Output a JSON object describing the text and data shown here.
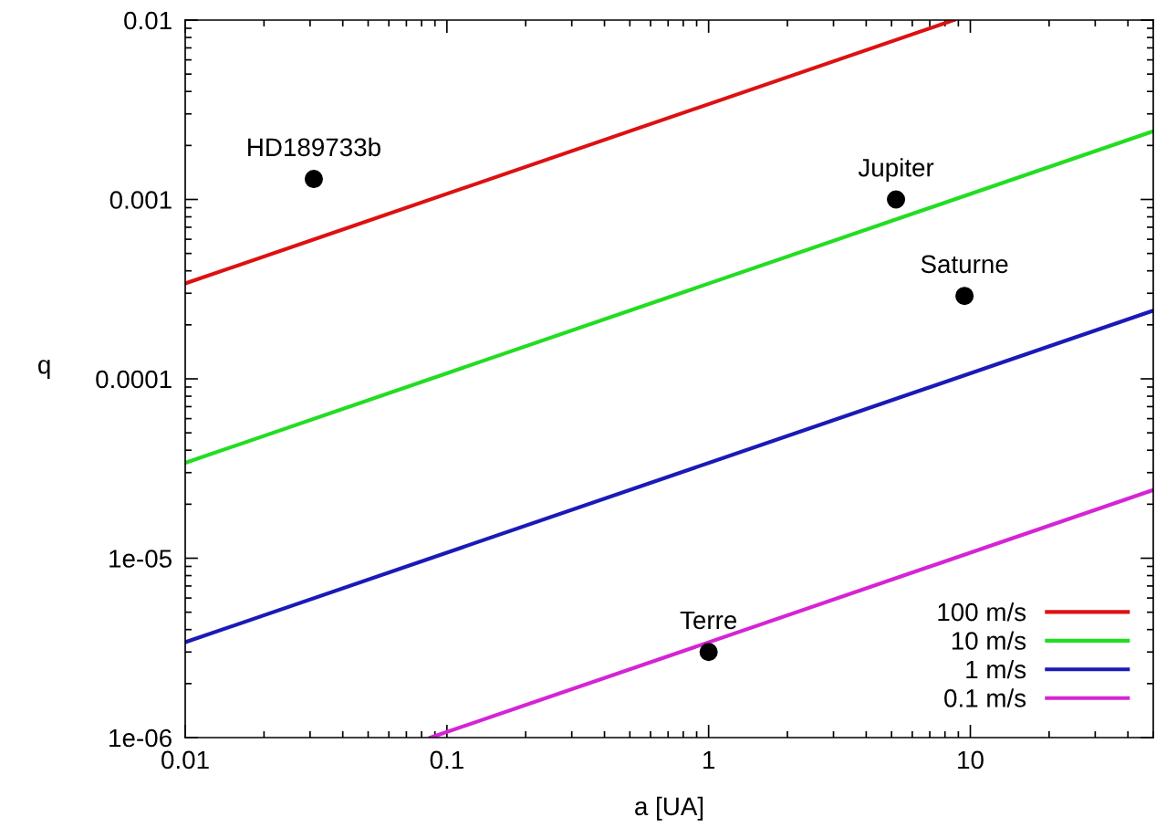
{
  "chart_data": {
    "type": "line",
    "xlabel": "a [UA]",
    "ylabel": "q",
    "log": "xy",
    "xlim": [
      0.01,
      50
    ],
    "ylim": [
      1e-06,
      0.01
    ],
    "xticks": [
      0.01,
      0.1,
      1,
      10
    ],
    "yticks": [
      {
        "value": 1e-06,
        "label": "1e-06"
      },
      {
        "value": 1e-05,
        "label": "1e-05"
      },
      {
        "value": 0.0001,
        "label": "0.0001"
      },
      {
        "value": 0.001,
        "label": "0.001"
      },
      {
        "value": 0.01,
        "label": "0.01"
      }
    ],
    "series": [
      {
        "name": "100 m/s",
        "color": "#dd1111",
        "x": [
          0.01,
          8.65
        ],
        "values": [
          0.00034,
          0.01
        ]
      },
      {
        "name": "10 m/s",
        "color": "#22dd22",
        "x": [
          0.01,
          50
        ],
        "values": [
          3.4e-05,
          0.0024
        ]
      },
      {
        "name": "1 m/s",
        "color": "#1a1ab8",
        "x": [
          0.01,
          50
        ],
        "values": [
          3.4e-06,
          0.00024
        ]
      },
      {
        "name": "0.1 m/s",
        "color": "#d524d5",
        "x": [
          0.0865,
          50
        ],
        "values": [
          1e-06,
          2.4e-05
        ]
      },
      {
        "type": "scatter",
        "color": "#000000",
        "marker": "circle",
        "x": [
          0.031,
          5.2,
          9.5,
          1
        ],
        "values": [
          0.0013,
          0.001,
          0.00029,
          3e-06
        ]
      }
    ],
    "annotations": [
      {
        "text": "HD189733b",
        "x": 0.031,
        "y": 0.0013
      },
      {
        "text": "Jupiter",
        "x": 5.2,
        "y": 0.001
      },
      {
        "text": "Saturne",
        "x": 9.5,
        "y": 0.00029
      },
      {
        "text": "Terre",
        "x": 1,
        "y": 3e-06
      }
    ],
    "legend": "bottom right",
    "grid": false
  }
}
